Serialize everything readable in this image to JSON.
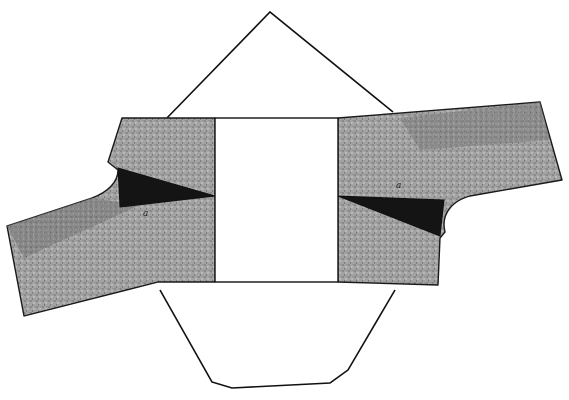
{
  "figure": {
    "labels": {
      "left": "a",
      "right": "a"
    },
    "colors": {
      "ink": "#111111",
      "band_fill": "#9a9a9a",
      "band_dark": "#5a5a5a",
      "background": "#ffffff"
    }
  }
}
